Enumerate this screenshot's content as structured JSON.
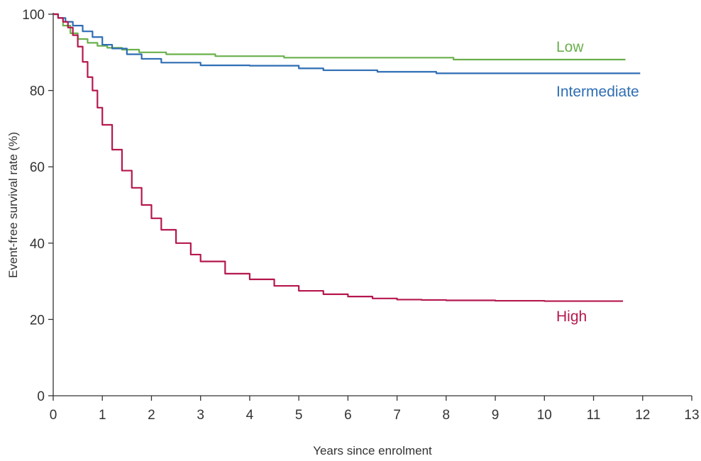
{
  "chart_data": {
    "type": "line",
    "xlabel": "Years since enrolment",
    "ylabel": "Event-free survival rate (%)",
    "xlim": [
      0,
      13
    ],
    "ylim": [
      0,
      100
    ],
    "xticks": [
      0,
      1,
      2,
      3,
      4,
      5,
      6,
      7,
      8,
      9,
      10,
      11,
      12,
      13
    ],
    "yticks": [
      0,
      20,
      40,
      60,
      80,
      100
    ],
    "grid": false,
    "legend": "inline labels at line ends",
    "series": [
      {
        "name": "Low",
        "color": "#6ab04c",
        "step": true,
        "x": [
          0,
          0.1,
          0.2,
          0.35,
          0.5,
          0.7,
          0.9,
          1.1,
          1.4,
          1.75,
          2.3,
          3.3,
          4.7,
          6.0,
          8.15,
          11.65
        ],
        "y": [
          100,
          99,
          97,
          95,
          93.5,
          92.5,
          91.7,
          91.2,
          90.7,
          90,
          89.5,
          89,
          88.6,
          88.6,
          88.1,
          88.1
        ]
      },
      {
        "name": "Intermediate",
        "color": "#2e6db4",
        "step": true,
        "x": [
          0,
          0.1,
          0.25,
          0.4,
          0.6,
          0.8,
          1.0,
          1.2,
          1.5,
          1.8,
          2.2,
          3.0,
          4.0,
          5.0,
          5.5,
          6.6,
          7.8,
          8.5,
          11.95
        ],
        "y": [
          100,
          99,
          98,
          97,
          95.5,
          94,
          92,
          91,
          89.5,
          88.3,
          87.3,
          86.6,
          86.5,
          85.8,
          85.3,
          84.9,
          84.5,
          84.5,
          84.5
        ]
      },
      {
        "name": "High",
        "color": "#b5174f",
        "step": true,
        "x": [
          0,
          0.1,
          0.2,
          0.3,
          0.4,
          0.5,
          0.6,
          0.7,
          0.8,
          0.9,
          1.0,
          1.2,
          1.4,
          1.6,
          1.8,
          2.0,
          2.2,
          2.5,
          2.8,
          3.0,
          3.5,
          4.0,
          4.5,
          5.0,
          5.5,
          6.0,
          6.5,
          7.0,
          7.5,
          8.0,
          9.0,
          10.0,
          11.0,
          11.6
        ],
        "y": [
          100,
          99,
          98,
          96.5,
          94.5,
          91.5,
          87.5,
          83.5,
          80,
          75.5,
          71,
          64.5,
          59,
          54.5,
          50,
          46.5,
          43.5,
          40,
          37,
          35.2,
          32,
          30.5,
          28.8,
          27.5,
          26.6,
          26,
          25.5,
          25.2,
          25.1,
          25,
          24.9,
          24.8,
          24.8,
          24.8
        ]
      }
    ]
  }
}
